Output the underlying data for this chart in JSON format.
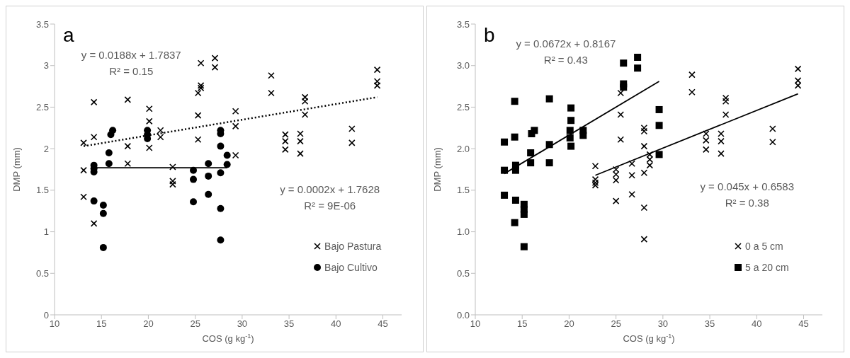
{
  "chart_data": [
    {
      "type": "scatter",
      "title": "a",
      "xlabel": "COS (g kg$^{-1}$)",
      "ylabel": "DMP (mm)",
      "xlim": [
        10,
        47
      ],
      "xticks": [
        10,
        15,
        20,
        25,
        30,
        35,
        40,
        45
      ],
      "ylim": [
        0,
        3.5
      ],
      "yticks": [
        0,
        0.5,
        1,
        1.5,
        2,
        2.5,
        3,
        3.5
      ],
      "legend": "bottom right",
      "annotations": [
        "y = 0.0188x + 1.7837",
        "R² = 0.15",
        "y = 0.0002x + 1.7628",
        "R² = 9E-06"
      ],
      "series": [
        {
          "name": "Bajo Pastura",
          "color": "#000000",
          "marker": "cross",
          "x": [
            13.1,
            13.1,
            13.1,
            14.2,
            14.2,
            14.2,
            17.8,
            17.8,
            17.8,
            20.1,
            20.1,
            20.1,
            21.3,
            21.3,
            22.6,
            22.6,
            22.6,
            25.3,
            25.3,
            25.3,
            25.6,
            25.6,
            25.6,
            27.1,
            27.1,
            29.3,
            29.3,
            29.3,
            33.1,
            33.1,
            34.6,
            34.6,
            34.6,
            36.2,
            36.2,
            36.2,
            36.7,
            36.7,
            36.7,
            41.7,
            41.7,
            44.4,
            44.4,
            44.4
          ],
          "values": [
            2.07,
            1.74,
            1.42,
            2.14,
            2.56,
            1.1,
            2.59,
            2.03,
            1.82,
            2.48,
            2.33,
            2.01,
            2.22,
            2.14,
            1.78,
            1.61,
            1.57,
            2.67,
            2.4,
            2.11,
            2.76,
            2.73,
            3.03,
            3.09,
            2.98,
            2.45,
            2.27,
            1.92,
            2.88,
            2.67,
            2.17,
            2.09,
            1.99,
            2.18,
            2.09,
            1.94,
            2.62,
            2.57,
            2.41,
            2.24,
            2.07,
            2.95,
            2.81,
            2.76
          ]
        },
        {
          "name": "Bajo Cultivo",
          "color": "#000000",
          "marker": "circle",
          "x": [
            14.2,
            14.2,
            14.2,
            14.2,
            15.2,
            15.2,
            15.2,
            15.8,
            15.8,
            16.0,
            16.2,
            19.9,
            19.9,
            19.9,
            24.8,
            24.8,
            24.8,
            26.4,
            26.4,
            26.4,
            27.7,
            27.7,
            27.7,
            27.7,
            27.7,
            27.7,
            28.4,
            28.4
          ],
          "values": [
            1.8,
            1.76,
            1.72,
            1.37,
            1.32,
            1.22,
            0.81,
            1.95,
            1.82,
            2.17,
            2.22,
            2.22,
            2.17,
            2.12,
            1.74,
            1.63,
            1.36,
            1.82,
            1.67,
            1.45,
            2.22,
            2.18,
            2.03,
            1.71,
            1.28,
            0.9,
            1.92,
            1.81
          ]
        },
        {
          "type": "line",
          "color": "#000000",
          "line_style": "dotted",
          "marker": "none",
          "x": [
            13.1,
            44.4
          ],
          "values": [
            2.03,
            2.62
          ]
        },
        {
          "type": "line",
          "color": "#000000",
          "line_style": "solid",
          "marker": "none",
          "x": [
            14.2,
            28.4
          ],
          "values": [
            1.77,
            1.77
          ]
        }
      ]
    },
    {
      "type": "scatter",
      "title": "b",
      "xlabel": "COS (g kg$^{-1}$)",
      "ylabel": "DMP (mm)",
      "xlim": [
        10,
        47
      ],
      "xticks": [
        10,
        15,
        20,
        25,
        30,
        35,
        40,
        45
      ],
      "ylim": [
        0,
        3.5
      ],
      "yticks": [
        {
          "value": 0,
          "label": "0.0"
        },
        {
          "value": 0.5,
          "label": "0.5"
        },
        {
          "value": 1,
          "label": "1.0"
        },
        {
          "value": 1.5,
          "label": "1.5"
        },
        {
          "value": 2,
          "label": "2.0"
        },
        {
          "value": 2.5,
          "label": "2.5"
        },
        {
          "value": 3,
          "label": "3.0"
        },
        {
          "value": 3.5,
          "label": "3.5"
        }
      ],
      "legend": "bottom right",
      "annotations": [
        "y = 0.0672x + 0.8167",
        "R² = 0.43",
        "y = 0.045x + 0.6583",
        "R² = 0.38"
      ],
      "series": [
        {
          "name": "0 a 5 cm",
          "color": "#000000",
          "marker": "cross",
          "x": [
            22.8,
            22.8,
            22.8,
            22.8,
            25.0,
            25.0,
            25.0,
            25.0,
            25.5,
            25.5,
            25.5,
            26.7,
            26.7,
            26.7,
            28.0,
            28.0,
            28.0,
            28.0,
            28.0,
            28.0,
            28.6,
            28.6,
            28.6,
            33.1,
            33.1,
            34.6,
            34.6,
            34.6,
            36.2,
            36.2,
            36.2,
            36.7,
            36.7,
            36.7,
            41.7,
            41.7,
            44.4,
            44.4,
            44.4
          ],
          "values": [
            1.79,
            1.63,
            1.59,
            1.56,
            1.75,
            1.69,
            1.62,
            1.37,
            2.67,
            2.41,
            2.11,
            1.82,
            1.68,
            1.45,
            2.25,
            2.21,
            2.03,
            1.71,
            1.29,
            0.91,
            1.93,
            1.87,
            1.8,
            2.89,
            2.68,
            2.18,
            2.1,
            1.99,
            2.18,
            2.09,
            1.94,
            2.61,
            2.57,
            2.41,
            2.24,
            2.08,
            2.96,
            2.82,
            2.76
          ]
        },
        {
          "name": "5 a 20 cm",
          "color": "#000000",
          "marker": "square",
          "x": [
            13.1,
            13.1,
            13.1,
            14.2,
            14.2,
            14.3,
            14.3,
            14.3,
            14.2,
            15.2,
            15.2,
            15.2,
            15.2,
            15.9,
            15.9,
            16.0,
            16.3,
            17.9,
            17.9,
            17.9,
            20.2,
            20.2,
            20.1,
            20.1,
            20.2,
            21.5,
            21.5,
            25.8,
            25.8,
            25.8,
            27.3,
            27.3,
            29.6,
            29.6,
            29.6
          ],
          "values": [
            2.08,
            1.74,
            1.44,
            2.57,
            2.14,
            1.8,
            1.74,
            1.38,
            1.11,
            1.33,
            1.27,
            1.21,
            0.82,
            1.95,
            1.83,
            2.18,
            2.22,
            2.6,
            2.05,
            1.83,
            2.49,
            2.34,
            2.22,
            2.13,
            2.03,
            2.22,
            2.16,
            3.03,
            2.78,
            2.74,
            3.1,
            2.97,
            2.47,
            2.28,
            1.93
          ]
        },
        {
          "type": "line",
          "color": "#000000",
          "line_style": "solid",
          "marker": "none",
          "x": [
            13.1,
            29.6
          ],
          "values": [
            1.7,
            2.81
          ]
        },
        {
          "type": "line",
          "color": "#000000",
          "line_style": "solid",
          "marker": "none",
          "x": [
            22.8,
            44.4
          ],
          "values": [
            1.68,
            2.66
          ]
        }
      ]
    }
  ]
}
